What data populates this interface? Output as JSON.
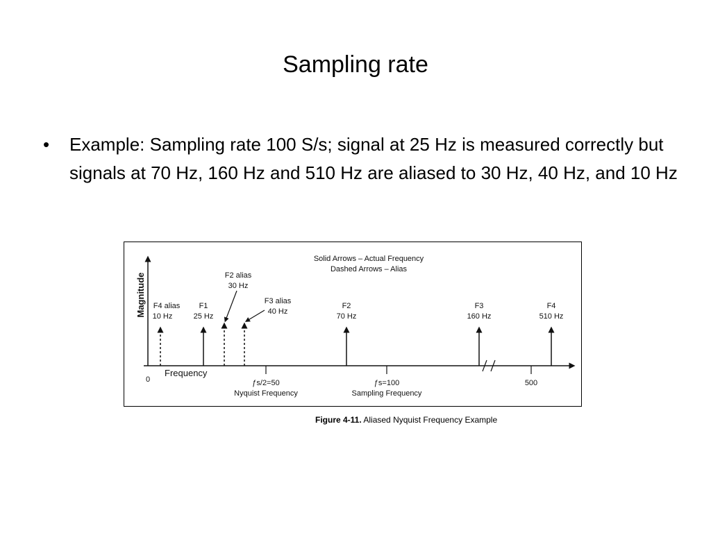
{
  "slide": {
    "title": "Sampling rate",
    "bullet": "Example: Sampling rate 100 S/s; signal at 25 Hz is measured correctly but signals at 70 Hz, 160 Hz and 510 Hz are aliased to 30 Hz, 40 Hz, and 10 Hz",
    "bullet_symbol": "•"
  },
  "figure": {
    "legend": [
      "Solid Arrows – Actual Frequency",
      "Dashed Arrows – Alias"
    ],
    "y_label": "Magnitude",
    "x_label": "Frequency",
    "origin_label": "0",
    "arrows": [
      {
        "name": "F4 alias",
        "freq": "10 Hz",
        "style": "dashed"
      },
      {
        "name": "F1",
        "freq": "25 Hz",
        "style": "solid"
      },
      {
        "name": "F2 alias",
        "freq": "30 Hz",
        "style": "dashed"
      },
      {
        "name": "F3 alias",
        "freq": "40 Hz",
        "style": "dashed"
      },
      {
        "name": "F2",
        "freq": "70 Hz",
        "style": "solid"
      },
      {
        "name": "F3",
        "freq": "160 Hz",
        "style": "solid"
      },
      {
        "name": "F4",
        "freq": "510 Hz",
        "style": "solid"
      }
    ],
    "ticks": [
      {
        "label": "ƒs/2=50",
        "sub": "Nyquist Frequency"
      },
      {
        "label": "ƒs=100",
        "sub": "Sampling Frequency"
      },
      {
        "label": "500",
        "sub": ""
      }
    ],
    "caption_bold": "Figure 4-11.",
    "caption_text": "Aliased Nyquist Frequency Example"
  }
}
